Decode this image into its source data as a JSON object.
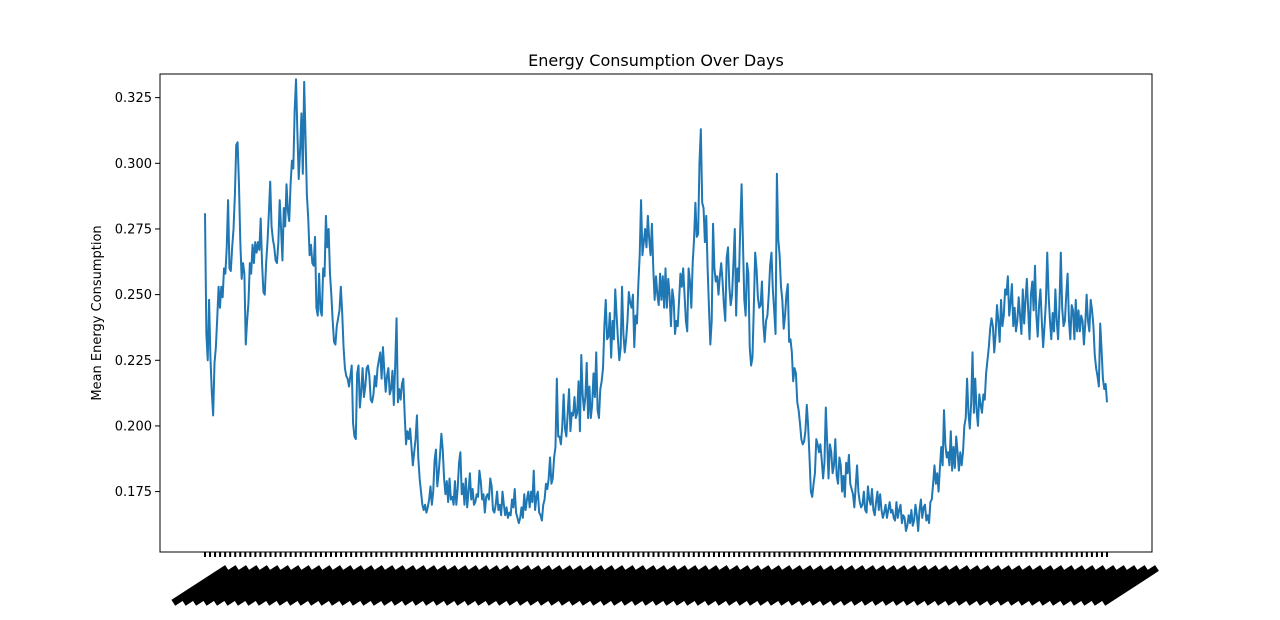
{
  "chart_data": {
    "type": "line",
    "title": "Energy Consumption Over Days",
    "xlabel": "",
    "ylabel": "Mean Energy Consumption",
    "ylim": [
      0.152,
      0.334
    ],
    "yticks": [
      0.175,
      0.2,
      0.225,
      0.25,
      0.275,
      0.3,
      0.325
    ],
    "ytick_labels": [
      "0.175",
      "0.200",
      "0.225",
      "0.250",
      "0.275",
      "0.300",
      "0.325"
    ],
    "x_tick_labels": "dense, illegible (rotated, overlapping)",
    "grid": false,
    "color": "#1f77b4",
    "series": [
      {
        "values": [
          0.281,
          0.235,
          0.225,
          0.248,
          0.226,
          0.213,
          0.204,
          0.224,
          0.23,
          0.241,
          0.253,
          0.245,
          0.253,
          0.249,
          0.26,
          0.258,
          0.268,
          0.286,
          0.26,
          0.259,
          0.268,
          0.275,
          0.288,
          0.307,
          0.308,
          0.292,
          0.27,
          0.256,
          0.262,
          0.258,
          0.231,
          0.24,
          0.247,
          0.262,
          0.258,
          0.269,
          0.262,
          0.27,
          0.266,
          0.27,
          0.267,
          0.279,
          0.262,
          0.251,
          0.25,
          0.262,
          0.27,
          0.281,
          0.293,
          0.276,
          0.271,
          0.268,
          0.263,
          0.262,
          0.27,
          0.286,
          0.275,
          0.263,
          0.283,
          0.276,
          0.292,
          0.282,
          0.278,
          0.292,
          0.301,
          0.298,
          0.32,
          0.332,
          0.312,
          0.294,
          0.305,
          0.319,
          0.296,
          0.331,
          0.31,
          0.288,
          0.279,
          0.265,
          0.269,
          0.262,
          0.261,
          0.272,
          0.245,
          0.242,
          0.258,
          0.244,
          0.242,
          0.26,
          0.257,
          0.28,
          0.268,
          0.275,
          0.258,
          0.25,
          0.24,
          0.232,
          0.231,
          0.238,
          0.241,
          0.244,
          0.253,
          0.243,
          0.23,
          0.222,
          0.219,
          0.218,
          0.215,
          0.219,
          0.223,
          0.201,
          0.196,
          0.195,
          0.22,
          0.223,
          0.207,
          0.213,
          0.222,
          0.211,
          0.215,
          0.222,
          0.223,
          0.219,
          0.21,
          0.209,
          0.212,
          0.219,
          0.215,
          0.222,
          0.225,
          0.228,
          0.218,
          0.23,
          0.221,
          0.213,
          0.219,
          0.222,
          0.212,
          0.214,
          0.221,
          0.208,
          0.223,
          0.241,
          0.209,
          0.214,
          0.21,
          0.216,
          0.218,
          0.204,
          0.193,
          0.198,
          0.195,
          0.199,
          0.192,
          0.185,
          0.19,
          0.195,
          0.204,
          0.188,
          0.18,
          0.175,
          0.17,
          0.168,
          0.17,
          0.167,
          0.169,
          0.172,
          0.177,
          0.17,
          0.175,
          0.187,
          0.191,
          0.177,
          0.182,
          0.189,
          0.197,
          0.191,
          0.18,
          0.174,
          0.179,
          0.171,
          0.18,
          0.172,
          0.173,
          0.17,
          0.179,
          0.17,
          0.176,
          0.186,
          0.19,
          0.174,
          0.178,
          0.17,
          0.18,
          0.169,
          0.175,
          0.182,
          0.172,
          0.176,
          0.17,
          0.171,
          0.174,
          0.173,
          0.183,
          0.179,
          0.172,
          0.174,
          0.167,
          0.173,
          0.174,
          0.172,
          0.18,
          0.177,
          0.168,
          0.167,
          0.17,
          0.175,
          0.168,
          0.17,
          0.166,
          0.175,
          0.17,
          0.166,
          0.169,
          0.165,
          0.167,
          0.166,
          0.172,
          0.169,
          0.176,
          0.167,
          0.165,
          0.163,
          0.165,
          0.169,
          0.165,
          0.174,
          0.168,
          0.172,
          0.175,
          0.169,
          0.175,
          0.171,
          0.183,
          0.168,
          0.173,
          0.175,
          0.167,
          0.166,
          0.164,
          0.17,
          0.172,
          0.178,
          0.176,
          0.18,
          0.188,
          0.178,
          0.18,
          0.188,
          0.192,
          0.218,
          0.196,
          0.196,
          0.193,
          0.2,
          0.212,
          0.199,
          0.196,
          0.205,
          0.214,
          0.198,
          0.205,
          0.204,
          0.211,
          0.203,
          0.205,
          0.217,
          0.198,
          0.227,
          0.212,
          0.206,
          0.211,
          0.224,
          0.203,
          0.215,
          0.203,
          0.208,
          0.22,
          0.211,
          0.228,
          0.206,
          0.203,
          0.214,
          0.217,
          0.222,
          0.238,
          0.248,
          0.233,
          0.234,
          0.243,
          0.226,
          0.24,
          0.233,
          0.252,
          0.242,
          0.233,
          0.225,
          0.23,
          0.253,
          0.235,
          0.228,
          0.233,
          0.24,
          0.251,
          0.247,
          0.245,
          0.25,
          0.23,
          0.242,
          0.239,
          0.254,
          0.265,
          0.286,
          0.265,
          0.27,
          0.275,
          0.268,
          0.28,
          0.271,
          0.265,
          0.277,
          0.26,
          0.248,
          0.257,
          0.25,
          0.246,
          0.258,
          0.248,
          0.257,
          0.245,
          0.26,
          0.245,
          0.256,
          0.25,
          0.238,
          0.252,
          0.248,
          0.235,
          0.24,
          0.238,
          0.248,
          0.258,
          0.253,
          0.26,
          0.25,
          0.24,
          0.236,
          0.26,
          0.255,
          0.245,
          0.262,
          0.271,
          0.285,
          0.272,
          0.273,
          0.3,
          0.313,
          0.285,
          0.283,
          0.27,
          0.28,
          0.26,
          0.245,
          0.231,
          0.24,
          0.277,
          0.26,
          0.255,
          0.257,
          0.25,
          0.257,
          0.262,
          0.255,
          0.246,
          0.24,
          0.264,
          0.268,
          0.253,
          0.246,
          0.25,
          0.262,
          0.275,
          0.242,
          0.26,
          0.255,
          0.275,
          0.292,
          0.27,
          0.248,
          0.242,
          0.262,
          0.258,
          0.23,
          0.223,
          0.226,
          0.245,
          0.266,
          0.26,
          0.249,
          0.245,
          0.246,
          0.255,
          0.239,
          0.232,
          0.24,
          0.242,
          0.25,
          0.261,
          0.266,
          0.252,
          0.244,
          0.235,
          0.296,
          0.271,
          0.265,
          0.253,
          0.248,
          0.237,
          0.242,
          0.25,
          0.254,
          0.232,
          0.233,
          0.228,
          0.217,
          0.222,
          0.22,
          0.209,
          0.206,
          0.201,
          0.195,
          0.193,
          0.194,
          0.198,
          0.208,
          0.2,
          0.188,
          0.175,
          0.173,
          0.178,
          0.182,
          0.195,
          0.193,
          0.19,
          0.193,
          0.187,
          0.18,
          0.186,
          0.207,
          0.194,
          0.18,
          0.193,
          0.19,
          0.182,
          0.185,
          0.195,
          0.181,
          0.178,
          0.188,
          0.185,
          0.175,
          0.181,
          0.173,
          0.186,
          0.182,
          0.189,
          0.178,
          0.176,
          0.174,
          0.169,
          0.177,
          0.185,
          0.175,
          0.171,
          0.169,
          0.17,
          0.175,
          0.168,
          0.167,
          0.177,
          0.172,
          0.17,
          0.176,
          0.168,
          0.166,
          0.171,
          0.175,
          0.168,
          0.174,
          0.168,
          0.165,
          0.167,
          0.17,
          0.165,
          0.168,
          0.171,
          0.167,
          0.168,
          0.165,
          0.164,
          0.171,
          0.165,
          0.168,
          0.17,
          0.163,
          0.166,
          0.165,
          0.16,
          0.162,
          0.166,
          0.163,
          0.168,
          0.162,
          0.164,
          0.17,
          0.166,
          0.16,
          0.168,
          0.172,
          0.165,
          0.169,
          0.17,
          0.164,
          0.166,
          0.163,
          0.171,
          0.172,
          0.178,
          0.185,
          0.178,
          0.182,
          0.175,
          0.184,
          0.192,
          0.185,
          0.206,
          0.193,
          0.188,
          0.19,
          0.185,
          0.198,
          0.183,
          0.192,
          0.184,
          0.196,
          0.19,
          0.183,
          0.19,
          0.185,
          0.19,
          0.2,
          0.203,
          0.218,
          0.205,
          0.199,
          0.209,
          0.228,
          0.205,
          0.218,
          0.206,
          0.2,
          0.212,
          0.208,
          0.205,
          0.212,
          0.21,
          0.22,
          0.225,
          0.23,
          0.237,
          0.241,
          0.238,
          0.228,
          0.235,
          0.246,
          0.24,
          0.232,
          0.248,
          0.238,
          0.242,
          0.252,
          0.25,
          0.257,
          0.242,
          0.247,
          0.254,
          0.238,
          0.245,
          0.236,
          0.24,
          0.249,
          0.242,
          0.235,
          0.252,
          0.239,
          0.248,
          0.256,
          0.244,
          0.233,
          0.25,
          0.255,
          0.244,
          0.261,
          0.242,
          0.234,
          0.246,
          0.252,
          0.24,
          0.23,
          0.238,
          0.247,
          0.266,
          0.25,
          0.24,
          0.233,
          0.243,
          0.236,
          0.252,
          0.24,
          0.233,
          0.246,
          0.266,
          0.245,
          0.238,
          0.24,
          0.25,
          0.258,
          0.24,
          0.233,
          0.246,
          0.244,
          0.233,
          0.248,
          0.236,
          0.244,
          0.236,
          0.242,
          0.24,
          0.231,
          0.239,
          0.25,
          0.24,
          0.236,
          0.248,
          0.244,
          0.238,
          0.227,
          0.222,
          0.219,
          0.215,
          0.239,
          0.229,
          0.218,
          0.214,
          0.216,
          0.209
        ],
        "color": "#1f77b4"
      }
    ]
  }
}
